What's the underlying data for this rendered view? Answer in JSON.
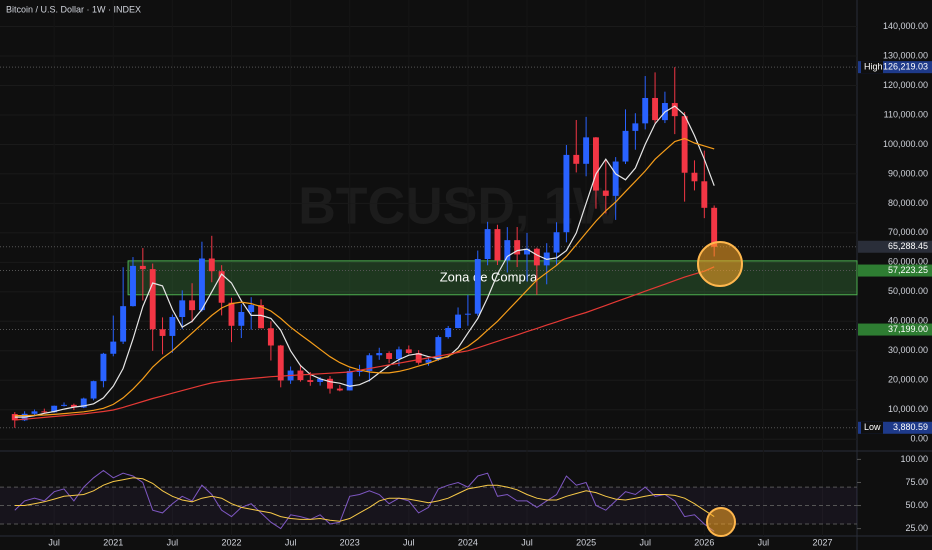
{
  "chart_data": {
    "type": "candlestick",
    "title": "Bitcoin / U.S. Dollar · 1W · INDEX",
    "watermark": "BTCUSD, 1W",
    "x": [
      "2020-03",
      "2020-04",
      "2020-05",
      "2020-06",
      "2020-07",
      "2020-08",
      "2020-09",
      "2020-10",
      "2020-11",
      "2020-12",
      "2021-01",
      "2021-02",
      "2021-03",
      "2021-04",
      "2021-05",
      "2021-06",
      "2021-07",
      "2021-08",
      "2021-09",
      "2021-10",
      "2021-11",
      "2021-12",
      "2022-01",
      "2022-02",
      "2022-03",
      "2022-04",
      "2022-05",
      "2022-06",
      "2022-07",
      "2022-08",
      "2022-09",
      "2022-10",
      "2022-11",
      "2022-12",
      "2023-01",
      "2023-02",
      "2023-03",
      "2023-04",
      "2023-05",
      "2023-06",
      "2023-07",
      "2023-08",
      "2023-09",
      "2023-10",
      "2023-11",
      "2023-12",
      "2024-01",
      "2024-02",
      "2024-03",
      "2024-04",
      "2024-05",
      "2024-06",
      "2024-07",
      "2024-08",
      "2024-09",
      "2024-10",
      "2024-11",
      "2024-12",
      "2025-01",
      "2025-02",
      "2025-03",
      "2025-04",
      "2025-05",
      "2025-06",
      "2025-07",
      "2025-08",
      "2025-09",
      "2025-10",
      "2025-11",
      "2025-12",
      "2026-01",
      "2026-02"
    ],
    "open": [
      8545,
      6410,
      8620,
      9450,
      9140,
      11350,
      11650,
      10780,
      13800,
      19700,
      28990,
      33110,
      45140,
      58800,
      57700,
      37300,
      35040,
      41460,
      47100,
      43790,
      61300,
      57000,
      46300,
      38480,
      43160,
      45510,
      37640,
      31790,
      19930,
      23290,
      20050,
      19430,
      20490,
      17170,
      16540,
      23130,
      23150,
      28480,
      29230,
      27220,
      30480,
      29230,
      25940,
      26970,
      34650,
      37720,
      42270,
      42580,
      61130,
      71280,
      60670,
      67530,
      62680,
      64620,
      58970,
      63330,
      70220,
      96450,
      93430,
      102400,
      84350,
      82550,
      94200,
      104600,
      107150,
      115760,
      108250,
      114050,
      109600,
      90400,
      87500,
      78500
    ],
    "high": [
      9190,
      9460,
      10070,
      10380,
      11440,
      12470,
      12070,
      14100,
      19860,
      29300,
      41950,
      58350,
      61790,
      64860,
      59590,
      41330,
      42320,
      50500,
      52920,
      67000,
      69000,
      59040,
      47990,
      45820,
      48190,
      47440,
      40000,
      31990,
      24670,
      25200,
      22790,
      21090,
      21450,
      18390,
      23950,
      25250,
      29180,
      31030,
      29820,
      31430,
      31800,
      30200,
      27490,
      35200,
      38420,
      44700,
      48970,
      64000,
      73750,
      72750,
      71950,
      71980,
      70000,
      65000,
      66500,
      73600,
      99800,
      108300,
      109350,
      102500,
      95000,
      95700,
      111900,
      110600,
      123200,
      124450,
      117900,
      126219.03,
      111000,
      94600,
      97900,
      79300
    ],
    "low": [
      3880.59,
      6150,
      8110,
      8900,
      8980,
      11100,
      9880,
      10550,
      13200,
      17600,
      28130,
      32300,
      45000,
      47040,
      30000,
      28800,
      29300,
      37330,
      39600,
      43300,
      53250,
      42000,
      32930,
      34320,
      37160,
      37700,
      26700,
      17600,
      18780,
      19540,
      18130,
      18190,
      15480,
      16260,
      16500,
      21350,
      19570,
      26940,
      25810,
      24800,
      28860,
      25300,
      24900,
      26560,
      34110,
      37620,
      38500,
      41880,
      59000,
      59100,
      56550,
      58400,
      53500,
      49000,
      52550,
      58900,
      66800,
      90500,
      89200,
      78200,
      76600,
      74400,
      93350,
      98200,
      105100,
      107300,
      107250,
      103500,
      80600,
      84400,
      75000,
      62000
    ],
    "close": [
      6410,
      8620,
      9450,
      9140,
      11350,
      11650,
      10780,
      13800,
      19700,
      28990,
      33110,
      45140,
      58800,
      57700,
      37300,
      35040,
      41460,
      47100,
      43790,
      61300,
      57000,
      46300,
      38480,
      43160,
      45510,
      37640,
      31790,
      19930,
      23290,
      20050,
      19430,
      20490,
      17170,
      16540,
      23130,
      23150,
      28480,
      29230,
      27220,
      30480,
      29230,
      25940,
      26970,
      34650,
      37720,
      42270,
      42580,
      61130,
      71280,
      60670,
      67530,
      62680,
      64620,
      58970,
      63330,
      70220,
      96450,
      93430,
      102400,
      84350,
      82550,
      94200,
      104600,
      107150,
      115760,
      108250,
      114050,
      109600,
      90400,
      87500,
      78500,
      65288.45
    ],
    "up_color": "#2962ff",
    "down_color": "#f23645",
    "series": [
      {
        "color": "#e6e6e6",
        "values": [
          7500,
          7500,
          8000,
          8800,
          9400,
          10200,
          10900,
          11300,
          12000,
          14000,
          18000,
          24000,
          34000,
          45000,
          53000,
          52000,
          44000,
          38000,
          40000,
          44000,
          50000,
          56000,
          53000,
          47000,
          42000,
          42000,
          41000,
          37000,
          30000,
          25000,
          22000,
          20500,
          19500,
          19000,
          18000,
          18500,
          20000,
          22500,
          25000,
          27000,
          28500,
          29000,
          28000,
          27300,
          28000,
          31000,
          36000,
          41000,
          48000,
          56000,
          62000,
          64000,
          64500,
          62500,
          61000,
          61500,
          64000,
          70000,
          80000,
          90000,
          95000,
          90000,
          88000,
          92000,
          100000,
          107000,
          111000,
          113000,
          110000,
          103000,
          95000,
          86000
        ]
      },
      {
        "color": "#f59d1a",
        "values": [
          8000,
          8000,
          8100,
          8200,
          8400,
          8700,
          9000,
          9300,
          9800,
          10500,
          11800,
          14000,
          17000,
          20500,
          24500,
          27500,
          30000,
          33000,
          36000,
          39000,
          42000,
          44500,
          46000,
          46500,
          46000,
          45000,
          43500,
          41000,
          38000,
          35500,
          33000,
          30500,
          28000,
          26000,
          24500,
          23500,
          22800,
          22500,
          22500,
          23000,
          23800,
          24800,
          25800,
          27000,
          28200,
          29800,
          31500,
          34000,
          37000,
          40000,
          43500,
          47000,
          50500,
          54000,
          56500,
          59000,
          62000,
          66000,
          70000,
          74000,
          77500,
          80500,
          84000,
          87500,
          91000,
          95000,
          98000,
          101000,
          102000,
          100500,
          99500,
          98500
        ]
      },
      {
        "color": "#e53935",
        "values": [
          6500,
          6800,
          7100,
          7400,
          7700,
          8000,
          8300,
          8600,
          9000,
          9400,
          9900,
          10800,
          11800,
          12800,
          13800,
          14700,
          15600,
          16500,
          17400,
          18300,
          19100,
          19600,
          20000,
          20300,
          20600,
          20900,
          21200,
          21400,
          21600,
          21800,
          22000,
          22200,
          22400,
          22600,
          22800,
          23400,
          24000,
          24600,
          25200,
          25800,
          26400,
          27000,
          27600,
          28200,
          28800,
          29400,
          30000,
          31000,
          32100,
          33200,
          34300,
          35400,
          36500,
          37600,
          38700,
          39800,
          40900,
          42000,
          43000,
          44200,
          45400,
          46600,
          47800,
          49000,
          50200,
          51400,
          52600,
          53800,
          55000,
          56000,
          57000,
          58500
        ]
      }
    ],
    "xlim": [
      "2020-02",
      "2027-05"
    ],
    "ylim": [
      -4000,
      149000
    ],
    "yticks": [
      {
        "value": 0,
        "label": "0.00"
      },
      {
        "value": 10000,
        "label": "10,000.00"
      },
      {
        "value": 20000,
        "label": "20,000.00"
      },
      {
        "value": 30000,
        "label": "30,000.00"
      },
      {
        "value": 40000,
        "label": "40,000.00"
      },
      {
        "value": 50000,
        "label": "50,000.00"
      },
      {
        "value": 60000,
        "label": "60,000.00"
      },
      {
        "value": 70000,
        "label": "70,000.00"
      },
      {
        "value": 80000,
        "label": "80,000.00"
      },
      {
        "value": 90000,
        "label": "90,000.00"
      },
      {
        "value": 100000,
        "label": "100,000.00"
      },
      {
        "value": 110000,
        "label": "110,000.00"
      },
      {
        "value": 120000,
        "label": "120,000.00"
      },
      {
        "value": 130000,
        "label": "130,000.00"
      },
      {
        "value": 140000,
        "label": "140,000.00"
      }
    ],
    "xticks": [
      {
        "value": "2020-07",
        "label": "Jul"
      },
      {
        "value": "2021-01",
        "label": "2021"
      },
      {
        "value": "2021-07",
        "label": "Jul"
      },
      {
        "value": "2022-01",
        "label": "2022"
      },
      {
        "value": "2022-07",
        "label": "Jul"
      },
      {
        "value": "2023-01",
        "label": "2023"
      },
      {
        "value": "2023-07",
        "label": "Jul"
      },
      {
        "value": "2024-01",
        "label": "2024"
      },
      {
        "value": "2024-07",
        "label": "Jul"
      },
      {
        "value": "2025-01",
        "label": "2025"
      },
      {
        "value": "2025-07",
        "label": "Jul"
      },
      {
        "value": "2026-01",
        "label": "2026"
      },
      {
        "value": "2026-07",
        "label": "Jul"
      },
      {
        "value": "2027-01",
        "label": "2027"
      }
    ],
    "zone": {
      "label": "Zona de Compra",
      "low": 49000,
      "high": 60500,
      "x": [
        "2021-03",
        "2027-05"
      ]
    },
    "levels": [
      {
        "name": "High",
        "value": 126219.03,
        "label": "126,219.03",
        "color": "#1e3a8a"
      },
      {
        "value": 65288.45,
        "label": "65,288.45",
        "color": "#2a2e39"
      },
      {
        "value": 57223.25,
        "label": "57,223.25",
        "color": "#2e7d32"
      },
      {
        "value": 37199,
        "label": "37,199.00",
        "color": "#2e7d32"
      },
      {
        "name": "Low",
        "value": 3880.59,
        "label": "3,880.59",
        "color": "#1e3a8a"
      }
    ],
    "rsi": {
      "ylim": [
        17,
        108
      ],
      "yticks": [
        {
          "value": 100,
          "label": "100.00"
        },
        {
          "value": 75,
          "label": "75.00"
        },
        {
          "value": 50,
          "label": "50.00"
        },
        {
          "value": 25,
          "label": "25.00"
        }
      ],
      "bands": [
        70,
        50,
        30
      ],
      "series": [
        {
          "color": "#7e57c2",
          "values": [
            45,
            55,
            58,
            55,
            65,
            68,
            55,
            70,
            80,
            88,
            80,
            85,
            82,
            75,
            45,
            42,
            52,
            60,
            55,
            72,
            62,
            45,
            38,
            48,
            52,
            42,
            32,
            25,
            40,
            38,
            35,
            40,
            30,
            32,
            60,
            62,
            66,
            62,
            52,
            58,
            55,
            42,
            48,
            68,
            72,
            75,
            70,
            82,
            85,
            60,
            62,
            55,
            55,
            48,
            55,
            62,
            82,
            72,
            75,
            50,
            45,
            55,
            65,
            62,
            70,
            60,
            62,
            55,
            38,
            40,
            30,
            22
          ]
        },
        {
          "color": "#f7c948",
          "values": [
            50,
            50,
            52,
            54,
            57,
            60,
            61,
            62,
            66,
            72,
            76,
            78,
            80,
            79,
            74,
            66,
            60,
            56,
            54,
            58,
            60,
            58,
            52,
            48,
            46,
            44,
            42,
            38,
            36,
            35,
            35,
            36,
            34,
            33,
            36,
            42,
            48,
            55,
            58,
            58,
            57,
            55,
            53,
            55,
            58,
            63,
            68,
            70,
            72,
            72,
            70,
            67,
            62,
            58,
            56,
            56,
            60,
            63,
            66,
            64,
            60,
            57,
            56,
            58,
            60,
            62,
            62,
            61,
            58,
            52,
            45,
            38
          ]
        }
      ]
    }
  }
}
